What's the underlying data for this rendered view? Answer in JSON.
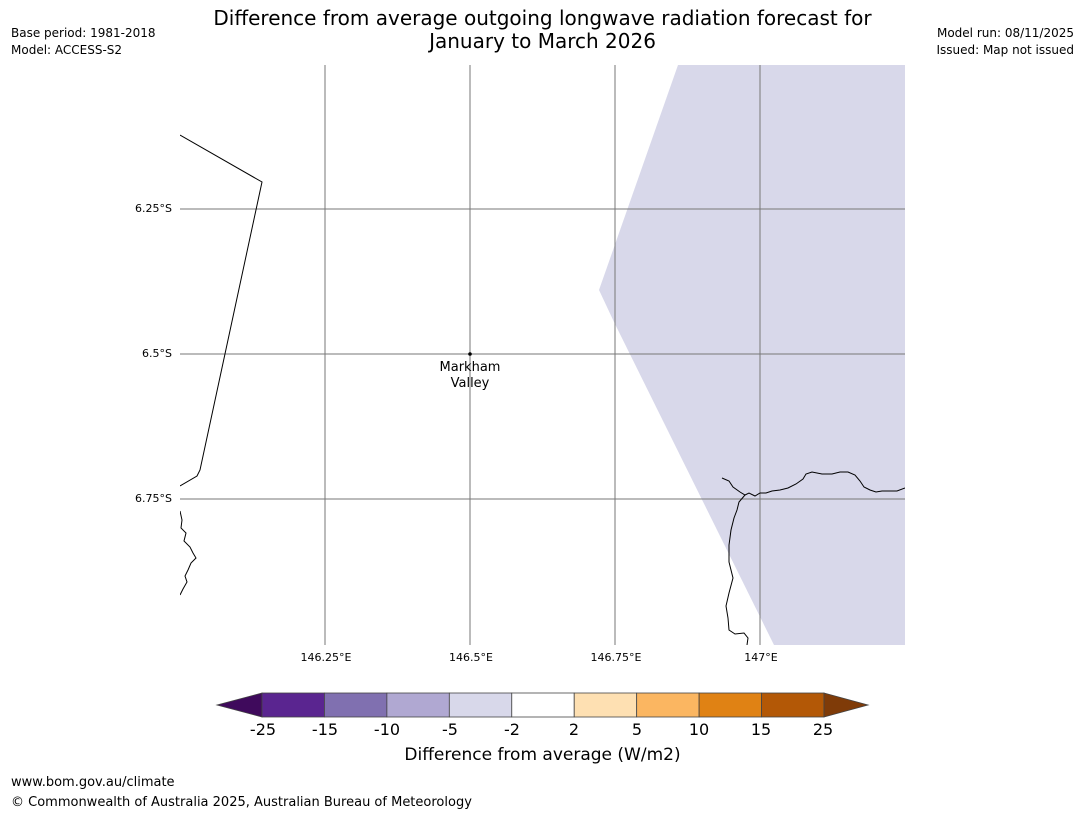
{
  "title": {
    "line1": "Difference from average outgoing longwave radiation forecast for",
    "line2": "January to March 2026"
  },
  "meta_left": {
    "base_period": "Base period: 1981-2018",
    "model": "Model: ACCESS-S2"
  },
  "meta_right": {
    "model_run": "Model run: 08/11/2025",
    "issued": "Issued: Map not issued"
  },
  "map": {
    "lat_labels": [
      "6.25°S",
      "6.5°S",
      "6.75°S"
    ],
    "lon_labels": [
      "146.25°E",
      "146.5°E",
      "146.75°E",
      "147°E"
    ],
    "place": {
      "line1": "Markham",
      "line2": "Valley"
    },
    "shaded_category": "-5 to -2",
    "shaded_color": "#d8d8ea"
  },
  "colorbar": {
    "ticks": [
      "-25",
      "-15",
      "-10",
      "-5",
      "-2",
      "2",
      "5",
      "10",
      "15",
      "25"
    ],
    "bins": [
      {
        "range": "< -25",
        "color": "#3f0a5c"
      },
      {
        "range": "-25 to -15",
        "color": "#5a2590"
      },
      {
        "range": "-15 to -10",
        "color": "#8070b0"
      },
      {
        "range": "-10 to -5",
        "color": "#b0a8d2"
      },
      {
        "range": "-5 to -2",
        "color": "#d8d8ea"
      },
      {
        "range": "-2 to 2",
        "color": "#ffffff"
      },
      {
        "range": "2 to 5",
        "color": "#fee0b2"
      },
      {
        "range": "5 to 10",
        "color": "#fbb661"
      },
      {
        "range": "10 to 15",
        "color": "#e08214"
      },
      {
        "range": "15 to 25",
        "color": "#b35806"
      },
      {
        "range": "> 25",
        "color": "#7f3b08"
      }
    ],
    "label": "Difference from average (W/m2)"
  },
  "footer": {
    "url": "www.bom.gov.au/climate",
    "copyright": "© Commonwealth of Australia 2025, Australian Bureau of Meteorology"
  }
}
